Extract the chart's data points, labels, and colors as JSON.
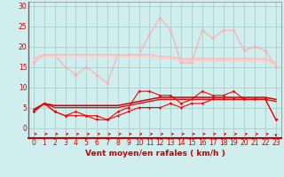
{
  "x": [
    0,
    1,
    2,
    3,
    4,
    5,
    6,
    7,
    8,
    9,
    10,
    11,
    12,
    13,
    14,
    15,
    16,
    17,
    18,
    19,
    20,
    21,
    22,
    23
  ],
  "series": [
    {
      "name": "rafales_max",
      "color": "#ffaaaa",
      "linewidth": 0.8,
      "marker": "D",
      "markersize": 1.5,
      "y": [
        16,
        18,
        18,
        15,
        13,
        15,
        13,
        11,
        18,
        18,
        18,
        23,
        27,
        24,
        16,
        16,
        24,
        22,
        24,
        24,
        19,
        20,
        19,
        15
      ]
    },
    {
      "name": "rafales_moy_high",
      "color": "#ffbbbb",
      "linewidth": 1.2,
      "marker": null,
      "markersize": 0,
      "y": [
        17,
        18,
        18,
        18,
        18,
        18,
        18,
        18,
        18,
        18,
        18,
        18,
        17.5,
        17.5,
        17,
        17,
        17,
        17,
        17,
        17,
        17,
        17,
        17,
        16
      ]
    },
    {
      "name": "rafales_moy_low",
      "color": "#ffcccc",
      "linewidth": 1.0,
      "marker": null,
      "markersize": 0,
      "y": [
        16.5,
        17.5,
        17.5,
        17.5,
        17.5,
        17.5,
        17.5,
        17.5,
        17.5,
        17.5,
        17.5,
        17.5,
        17,
        17,
        16.5,
        16.5,
        16.5,
        16.5,
        16.5,
        16.5,
        16.5,
        16.5,
        16.5,
        15.5
      ]
    },
    {
      "name": "vent_max",
      "color": "#ff0000",
      "linewidth": 0.8,
      "marker": "D",
      "markersize": 1.5,
      "y": [
        4,
        6,
        4,
        3,
        4,
        3,
        3,
        2,
        4,
        5,
        9,
        9,
        8,
        8,
        6,
        7,
        9,
        8,
        8,
        9,
        7,
        7,
        7,
        2
      ]
    },
    {
      "name": "vent_moy_high",
      "color": "#cc0000",
      "linewidth": 1.1,
      "marker": null,
      "markersize": 0,
      "y": [
        4.5,
        6,
        5.5,
        5.5,
        5.5,
        5.5,
        5.5,
        5.5,
        5.5,
        6,
        6.5,
        7,
        7.5,
        7.5,
        7.5,
        7.5,
        7.5,
        7.5,
        7.5,
        7.5,
        7.5,
        7.5,
        7.5,
        7
      ]
    },
    {
      "name": "vent_moy_low",
      "color": "#dd1111",
      "linewidth": 1.0,
      "marker": null,
      "markersize": 0,
      "y": [
        4,
        6,
        5,
        5,
        5,
        5,
        5,
        5,
        5,
        5.5,
        6,
        6.5,
        7,
        7,
        7,
        7,
        7,
        7,
        7,
        7,
        7,
        7,
        7,
        6.5
      ]
    },
    {
      "name": "vent_min",
      "color": "#ff0000",
      "linewidth": 0.8,
      "marker": "v",
      "markersize": 2,
      "y": [
        4,
        6,
        4,
        3,
        3,
        3,
        2,
        2,
        3,
        4,
        5,
        5,
        5,
        6,
        5,
        6,
        6,
        7,
        7,
        7,
        7,
        7,
        7,
        2
      ]
    }
  ],
  "xlabel": "Vent moyen/en rafales ( km/h )",
  "xlabel_color": "#cc0000",
  "xlabel_fontsize": 6.5,
  "tick_fontsize": 5.5,
  "tick_color": "#cc0000",
  "background_color": "#d0eeed",
  "grid_color": "#a0c8c8",
  "ylim": [
    -2.5,
    31
  ],
  "xlim": [
    -0.5,
    23.5
  ],
  "yticks": [
    0,
    5,
    10,
    15,
    20,
    25,
    30
  ],
  "xticks": [
    0,
    1,
    2,
    3,
    4,
    5,
    6,
    7,
    8,
    9,
    10,
    11,
    12,
    13,
    14,
    15,
    16,
    17,
    18,
    19,
    20,
    21,
    22,
    23
  ]
}
